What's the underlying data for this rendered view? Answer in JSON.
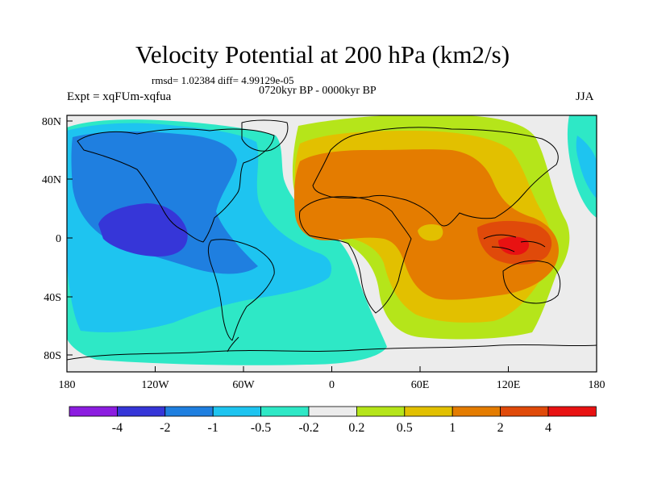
{
  "header": {
    "title": "Velocity Potential at 200 hPa (km2/s)",
    "stats": "rmsd= 1.02384 diff= 4.99129e-05",
    "period": "0720kyr BP - 0000kyr BP",
    "experiment": "Expt = xqFUm-xqfua",
    "season": "JJA"
  },
  "map": {
    "projection": "cylindrical-equidistant",
    "lat_ticks": [
      "80N",
      "40N",
      "0",
      "40S",
      "80S"
    ],
    "lon_ticks": [
      "180",
      "120W",
      "60W",
      "0",
      "60E",
      "120E",
      "180"
    ]
  },
  "colorbar": {
    "labels": [
      "-4",
      "-2",
      "-1",
      "-0.5",
      "-0.2",
      "0.2",
      "0.5",
      "1",
      "2",
      "4"
    ],
    "colors": [
      "#8c1de0",
      "#3636d8",
      "#1f7fe0",
      "#1ec4f0",
      "#2ee8c6",
      "#ececec",
      "#b5e51a",
      "#e2c000",
      "#e47c00",
      "#e04a0a",
      "#e81212"
    ]
  }
}
